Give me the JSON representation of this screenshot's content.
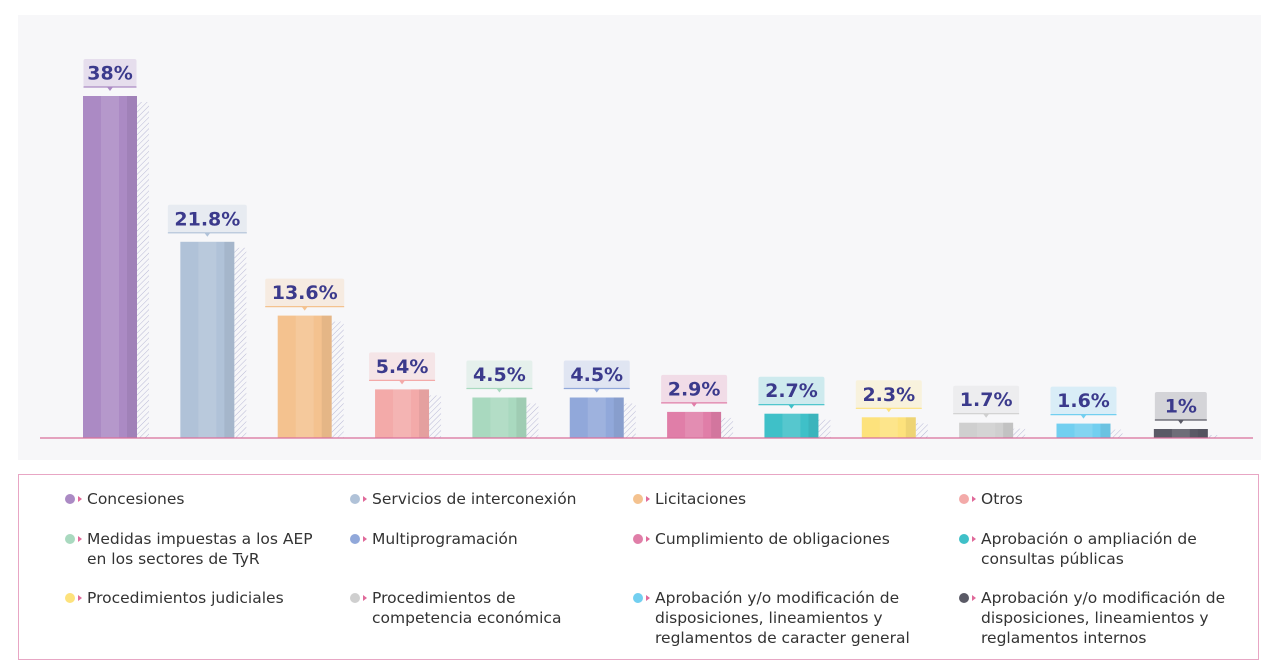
{
  "chart_data": {
    "type": "bar",
    "categories": [
      "Concesiones",
      "Servicios de interconexión",
      "Licitaciones",
      "Otros",
      "Medidas impuestas a los AEP en los sectores de TyR",
      "Multiprogramación",
      "Cumplimiento de obligaciones",
      "Aprobación o ampliación de consultas públicas",
      "Procedimientos judiciales",
      "Procedimientos de competencia económica",
      "Aprobación y/o modificación de disposiciones, lineamientos y reglamentos de caracter general",
      "Aprobación y/o modificación de disposiciones, lineamientos y reglamentos internos"
    ],
    "values": [
      38,
      21.8,
      13.6,
      5.4,
      4.5,
      4.5,
      2.9,
      2.7,
      2.3,
      1.7,
      1.6,
      1
    ],
    "value_labels": [
      "38%",
      "21.8%",
      "13.6%",
      "5.4%",
      "4.5%",
      "4.5%",
      "2.9%",
      "2.7%",
      "2.3%",
      "1.7%",
      "1.6%",
      "1%"
    ],
    "colors": [
      "#ab8ac4",
      "#b0c2d8",
      "#f4c28f",
      "#f3aaa9",
      "#a9d9bf",
      "#91a8da",
      "#e07ea8",
      "#3fc0c8",
      "#fde27c",
      "#cfcfcf",
      "#72cff0",
      "#5a5a66"
    ]
  }
}
